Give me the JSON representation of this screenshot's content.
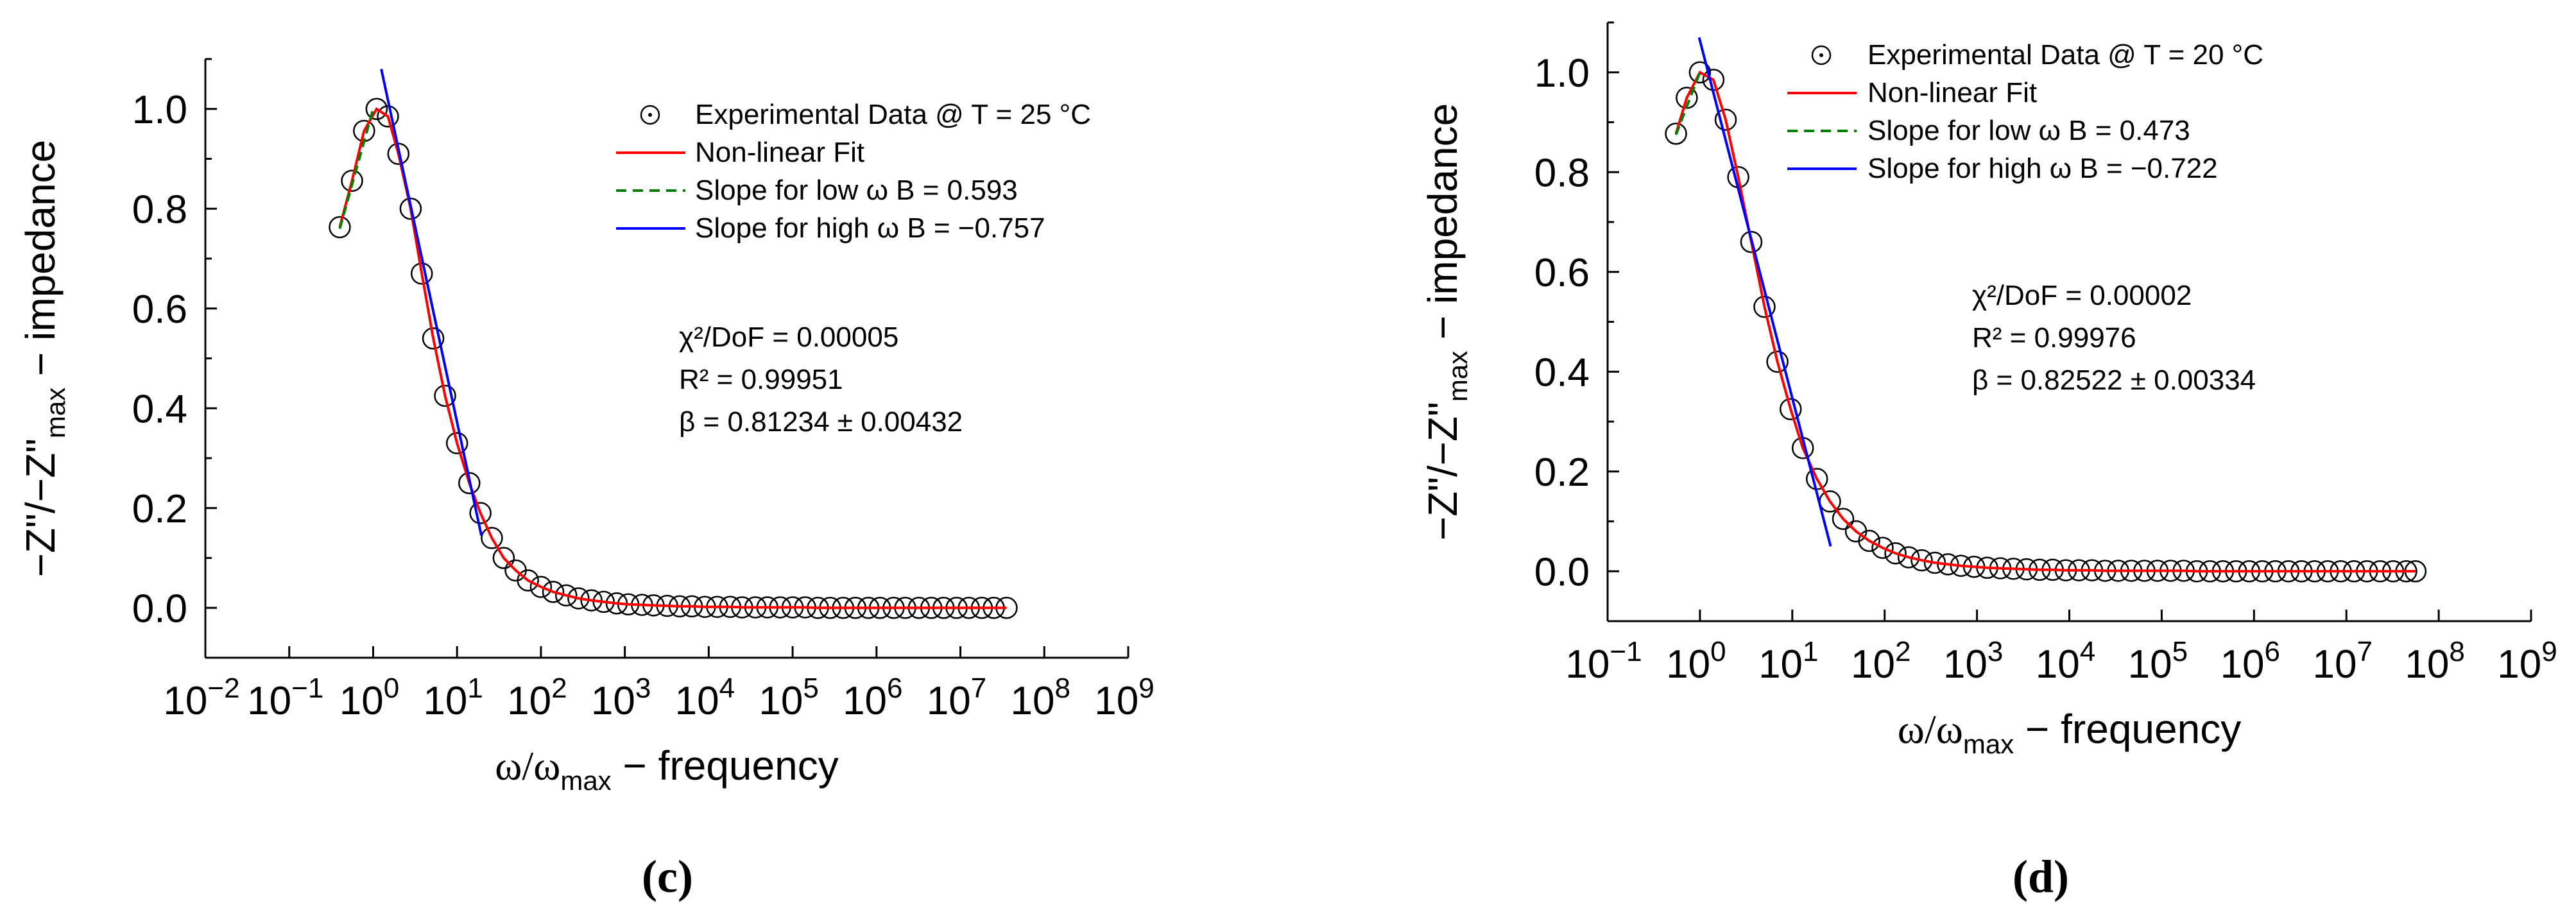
{
  "chart_data": [
    {
      "type": "scatter",
      "panel_label": "(c)",
      "xscale": "log",
      "xlim_log10": [
        -2,
        9
      ],
      "xtick_exponents": [
        "-2",
        "-1",
        "0",
        "1",
        "2",
        "3",
        "4",
        "5",
        "6",
        "7",
        "8",
        "9"
      ],
      "ylim": [
        -0.1,
        1.1
      ],
      "yticks": [
        "0.0",
        "0.2",
        "0.4",
        "0.6",
        "0.8",
        "1.0"
      ],
      "xlabel": {
        "main": "ω/ω",
        "sub": "max",
        "tail": " − frequency"
      },
      "ylabel": {
        "part1": "−Z\"/−Z\"",
        "sub": "max",
        "tail": " − impedance"
      },
      "legend": {
        "position": "top-right",
        "entries": [
          {
            "label": "Experimental Data @ T = 25 °C",
            "marker": "circle",
            "color": "#000000"
          },
          {
            "label": "Non-linear Fit",
            "line": "solid",
            "color": "#ff0000"
          },
          {
            "label": "Slope for low ω    B = 0.593",
            "line": "dashed",
            "color": "#008000"
          },
          {
            "label": "Slope for high ω   B = −0.757",
            "line": "solid",
            "color": "#0000ff"
          }
        ]
      },
      "stats": {
        "chi2": "χ²/DoF = 0.00005",
        "r2": "R² = 0.99951",
        "beta": "β = 0.81234 ± 0.00432"
      },
      "series": [
        {
          "name": "Experimental Data @ T = 25 °C",
          "x": [
            0.4,
            0.56,
            0.78,
            1.1,
            1.5,
            2.0,
            2.8,
            3.8,
            5.2,
            7.2,
            10,
            14,
            19,
            26,
            36,
            50,
            70,
            100,
            140,
            200,
            280,
            400,
            560,
            800,
            1100,
            1600,
            2200,
            3200,
            4500,
            6300,
            9000,
            12600,
            18000,
            25000,
            36000,
            50000,
            71000,
            100000,
            141000,
            200000,
            280000,
            400000,
            560000,
            800000,
            1100000,
            1600000,
            2200000,
            3200000,
            4500000,
            6300000,
            9000000,
            12600000,
            18000000,
            25000000,
            35500000
          ],
          "y": [
            0.763,
            0.856,
            0.956,
            1.0,
            0.985,
            0.91,
            0.8,
            0.67,
            0.54,
            0.425,
            0.33,
            0.25,
            0.19,
            0.14,
            0.1,
            0.075,
            0.055,
            0.042,
            0.032,
            0.025,
            0.019,
            0.015,
            0.012,
            0.009,
            0.007,
            0.006,
            0.005,
            0.004,
            0.003,
            0.003,
            0.002,
            0.002,
            0.002,
            0.001,
            0.001,
            0.001,
            0.001,
            0.001,
            0.001,
            0.0,
            0.0,
            0.0,
            0.0,
            0.0,
            0.0,
            0.0,
            0.0,
            0.0,
            0.0,
            0.0,
            0.0,
            0.0,
            0.0,
            0.0,
            0.0
          ]
        },
        {
          "name": "Non-linear Fit",
          "x": [
            0.4,
            0.56,
            0.78,
            1.1,
            1.5,
            2.0,
            2.8,
            3.8,
            5.2,
            7.2,
            10,
            14,
            19,
            26,
            36,
            50,
            70,
            100,
            140,
            200,
            280,
            400,
            560,
            800,
            1100,
            1600,
            2200,
            3200,
            4500,
            6300,
            9000,
            12600,
            18000,
            25000,
            36000,
            50000,
            71000,
            100000,
            141000,
            200000,
            280000,
            400000,
            560000,
            800000,
            1100000,
            1600000,
            2200000,
            3200000,
            4500000,
            6300000,
            9000000,
            12600000,
            18000000,
            25000000,
            35500000
          ],
          "y": [
            0.763,
            0.856,
            0.956,
            1.0,
            0.985,
            0.91,
            0.8,
            0.67,
            0.54,
            0.425,
            0.33,
            0.25,
            0.19,
            0.14,
            0.1,
            0.075,
            0.055,
            0.042,
            0.032,
            0.025,
            0.019,
            0.015,
            0.012,
            0.009,
            0.007,
            0.006,
            0.005,
            0.004,
            0.003,
            0.003,
            0.002,
            0.002,
            0.002,
            0.001,
            0.001,
            0.001,
            0.001,
            0.001,
            0.001,
            0.0,
            0.0,
            0.0,
            0.0,
            0.0,
            0.0,
            0.0,
            0.0,
            0.0,
            0.0,
            0.0,
            0.0,
            0.0,
            0.0,
            0.0,
            0.0
          ]
        },
        {
          "name": "Slope for low ω    B = 0.593",
          "x": [
            0.4,
            1.0
          ],
          "y": [
            0.76,
            1.0
          ]
        },
        {
          "name": "Slope for high ω   B = −0.757",
          "x": [
            1.25,
            19.5
          ],
          "y": [
            1.08,
            0.145
          ]
        }
      ]
    },
    {
      "type": "scatter",
      "panel_label": "(d)",
      "xscale": "log",
      "xlim_log10": [
        -1,
        9
      ],
      "xtick_exponents": [
        "-1",
        "0",
        "1",
        "2",
        "3",
        "4",
        "5",
        "6",
        "7",
        "8",
        "9"
      ],
      "ylim": [
        -0.1,
        1.1
      ],
      "yticks": [
        "0.0",
        "0.2",
        "0.4",
        "0.6",
        "0.8",
        "1.0"
      ],
      "xlabel": {
        "main": "ω/ω",
        "sub": "max",
        "tail": " − frequency"
      },
      "ylabel": {
        "part1": "−Z\"/−Z\"",
        "sub": "max",
        "tail": " − impedance"
      },
      "legend": {
        "position": "top-left",
        "entries": [
          {
            "label": "Experimental Data @ T = 20 °C",
            "marker": "circle",
            "color": "#000000"
          },
          {
            "label": "Non-linear Fit",
            "line": "solid",
            "color": "#ff0000"
          },
          {
            "label": "Slope for low ω    B = 0.473",
            "line": "dashed",
            "color": "#008000"
          },
          {
            "label": "Slope for high ω   B = −0.722",
            "line": "solid",
            "color": "#0000ff"
          }
        ]
      },
      "stats": {
        "chi2": "χ²/DoF = 0.00002",
        "r2": "R² = 0.99976",
        "beta": "β = 0.82522 ± 0.00334"
      },
      "series": [
        {
          "name": "Experimental Data @ T = 20 °C",
          "x": [
            0.55,
            0.72,
            1.0,
            1.4,
            1.9,
            2.6,
            3.6,
            5.0,
            6.9,
            9.6,
            13,
            18.5,
            25.6,
            35.5,
            49,
            68,
            95,
            131,
            182,
            252,
            350,
            485,
            672,
            930,
            1290,
            1790,
            2480,
            3440,
            4770,
            6610,
            9160,
            12700,
            17600,
            24400,
            33800,
            46900,
            65000,
            90100,
            125000,
            173000,
            240000,
            333000,
            461000,
            639000,
            886000,
            1230000,
            1700000,
            2360000,
            3270000,
            4530000,
            6280000,
            8700000,
            12100000,
            16700000,
            23200000,
            32100000,
            44500000,
            56000000
          ],
          "y": [
            0.877,
            0.949,
            1.0,
            0.985,
            0.905,
            0.79,
            0.66,
            0.53,
            0.42,
            0.325,
            0.247,
            0.185,
            0.14,
            0.105,
            0.08,
            0.061,
            0.047,
            0.036,
            0.028,
            0.022,
            0.017,
            0.014,
            0.011,
            0.009,
            0.007,
            0.006,
            0.005,
            0.004,
            0.003,
            0.003,
            0.002,
            0.002,
            0.002,
            0.001,
            0.001,
            0.001,
            0.001,
            0.001,
            0.001,
            0.001,
            0.0,
            0.0,
            0.0,
            0.0,
            0.0,
            0.0,
            0.0,
            0.0,
            0.0,
            0.0,
            0.0,
            0.0,
            0.0,
            0.0,
            0.0,
            0.0,
            0.0,
            0.0
          ]
        },
        {
          "name": "Non-linear Fit",
          "x": [
            0.55,
            0.72,
            1.0,
            1.4,
            1.9,
            2.6,
            3.6,
            5.0,
            6.9,
            9.6,
            13,
            18.5,
            25.6,
            35.5,
            49,
            68,
            95,
            131,
            182,
            252,
            350,
            485,
            672,
            930,
            1290,
            1790,
            2480,
            3440,
            4770,
            6610,
            9160,
            12700,
            17600,
            24400,
            33800,
            46900,
            65000,
            90100,
            125000,
            173000,
            240000,
            333000,
            461000,
            639000,
            886000,
            1230000,
            1700000,
            2360000,
            3270000,
            4530000,
            6280000,
            8700000,
            12100000,
            16700000,
            23200000,
            32100000,
            44500000,
            56000000
          ],
          "y": [
            0.877,
            0.949,
            1.0,
            0.985,
            0.905,
            0.79,
            0.66,
            0.53,
            0.42,
            0.325,
            0.247,
            0.185,
            0.14,
            0.105,
            0.08,
            0.061,
            0.047,
            0.036,
            0.028,
            0.022,
            0.017,
            0.014,
            0.011,
            0.009,
            0.007,
            0.006,
            0.005,
            0.004,
            0.003,
            0.003,
            0.002,
            0.002,
            0.002,
            0.001,
            0.001,
            0.001,
            0.001,
            0.001,
            0.001,
            0.001,
            0.0,
            0.0,
            0.0,
            0.0,
            0.0,
            0.0,
            0.0,
            0.0,
            0.0,
            0.0,
            0.0,
            0.0,
            0.0,
            0.0,
            0.0,
            0.0,
            0.0,
            0.0
          ]
        },
        {
          "name": "Slope for low ω    B = 0.473",
          "x": [
            0.55,
            1.0
          ],
          "y": [
            0.875,
            1.0
          ]
        },
        {
          "name": "Slope for high ω   B = −0.722",
          "x": [
            0.98,
            26
          ],
          "y": [
            1.07,
            0.05
          ]
        }
      ]
    }
  ]
}
